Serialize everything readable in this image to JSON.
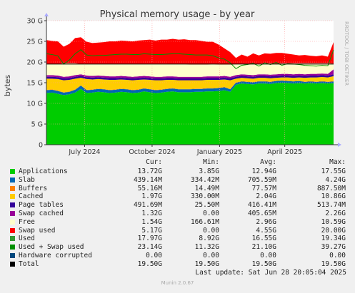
{
  "chart_data": {
    "type": "area",
    "title": "Physical memory usage - by year",
    "ylabel": "bytes",
    "watermark": "RRDTOOL / TOBI OETIKER",
    "ylim": [
      0,
      30
    ],
    "yticks": [
      0,
      5,
      10,
      15,
      20,
      25,
      30
    ],
    "ytick_labels": [
      "0",
      "5 G",
      "10 G",
      "15 G",
      "20 G",
      "25 G",
      "30 G"
    ],
    "x": [
      0,
      0.02,
      0.04,
      0.06,
      0.08,
      0.1,
      0.12,
      0.14,
      0.16,
      0.18,
      0.2,
      0.22,
      0.24,
      0.26,
      0.28,
      0.3,
      0.32,
      0.34,
      0.36,
      0.38,
      0.4,
      0.42,
      0.44,
      0.46,
      0.48,
      0.5,
      0.52,
      0.54,
      0.56,
      0.58,
      0.6,
      0.62,
      0.64,
      0.66,
      0.68,
      0.7,
      0.72,
      0.74,
      0.76,
      0.78,
      0.8,
      0.82,
      0.84,
      0.86,
      0.88,
      0.9,
      0.92,
      0.94,
      0.96,
      0.98,
      1.0
    ],
    "x_labels": [
      {
        "pos": 0.133,
        "label": "July 2024"
      },
      {
        "pos": 0.368,
        "label": "October 2024"
      },
      {
        "pos": 0.603,
        "label": "January 2025"
      },
      {
        "pos": 0.83,
        "label": "April 2025"
      }
    ],
    "series": [
      {
        "name": "Applications",
        "color": "#00cc00",
        "values": [
          12.5,
          12.6,
          12.3,
          12.0,
          12.2,
          12.6,
          13.5,
          12.5,
          12.6,
          12.8,
          12.7,
          12.5,
          12.6,
          12.8,
          12.7,
          12.5,
          12.6,
          12.9,
          12.7,
          12.5,
          12.6,
          12.8,
          12.9,
          12.7,
          12.7,
          12.7,
          12.8,
          12.8,
          12.9,
          12.9,
          13.0,
          13.2,
          12.8,
          14.5,
          14.8,
          14.7,
          14.6,
          14.8,
          14.8,
          14.7,
          14.9,
          15.0,
          14.9,
          14.8,
          14.9,
          14.8,
          14.9,
          14.8,
          14.9,
          14.8,
          14.9
        ]
      },
      {
        "name": "Slab",
        "color": "#0066b3",
        "values": [
          0.7,
          0.7,
          0.7,
          0.6,
          0.6,
          0.7,
          0.8,
          0.7,
          0.7,
          0.7,
          0.7,
          0.7,
          0.7,
          0.7,
          0.7,
          0.7,
          0.7,
          0.7,
          0.7,
          0.7,
          0.7,
          0.7,
          0.7,
          0.7,
          0.7,
          0.7,
          0.7,
          0.7,
          0.7,
          0.7,
          0.7,
          0.7,
          0.6,
          0.5,
          0.5,
          0.5,
          0.5,
          0.5,
          0.5,
          0.5,
          0.5,
          0.5,
          0.5,
          0.5,
          0.5,
          0.4,
          0.4,
          0.4,
          0.4,
          0.4,
          0.4
        ]
      },
      {
        "name": "Buffers",
        "color": "#ff8000",
        "values": [
          0.08,
          0.08,
          0.08,
          0.08,
          0.08,
          0.08,
          0.08,
          0.08,
          0.08,
          0.08,
          0.08,
          0.08,
          0.08,
          0.08,
          0.08,
          0.08,
          0.08,
          0.08,
          0.08,
          0.08,
          0.08,
          0.08,
          0.08,
          0.08,
          0.08,
          0.08,
          0.08,
          0.08,
          0.08,
          0.08,
          0.08,
          0.08,
          0.08,
          0.08,
          0.08,
          0.08,
          0.08,
          0.08,
          0.08,
          0.08,
          0.08,
          0.08,
          0.08,
          0.08,
          0.08,
          0.08,
          0.08,
          0.08,
          0.08,
          0.08,
          0.08
        ]
      },
      {
        "name": "Cached",
        "color": "#ffcc00",
        "values": [
          2.7,
          2.6,
          2.8,
          2.9,
          2.8,
          2.6,
          1.8,
          2.6,
          2.4,
          2.3,
          2.3,
          2.4,
          2.3,
          2.2,
          2.2,
          2.3,
          2.3,
          2.1,
          2.2,
          2.3,
          2.2,
          2.1,
          2.0,
          2.1,
          2.1,
          2.1,
          2.0,
          2.0,
          2.0,
          2.0,
          1.9,
          1.8,
          2.1,
          0.9,
          0.8,
          0.8,
          0.8,
          0.8,
          0.8,
          0.8,
          0.7,
          0.7,
          0.8,
          0.8,
          0.8,
          0.9,
          0.9,
          1.0,
          1.0,
          1.0,
          1.2
        ]
      },
      {
        "name": "Page tables",
        "color": "#330099",
        "values": [
          0.45,
          0.45,
          0.45,
          0.45,
          0.45,
          0.45,
          0.45,
          0.45,
          0.45,
          0.45,
          0.45,
          0.45,
          0.45,
          0.45,
          0.45,
          0.45,
          0.45,
          0.45,
          0.45,
          0.45,
          0.45,
          0.45,
          0.45,
          0.45,
          0.45,
          0.45,
          0.45,
          0.45,
          0.45,
          0.45,
          0.45,
          0.45,
          0.45,
          0.45,
          0.45,
          0.45,
          0.45,
          0.45,
          0.45,
          0.45,
          0.45,
          0.45,
          0.45,
          0.45,
          0.45,
          0.45,
          0.45,
          0.45,
          0.45,
          0.45,
          0.45
        ]
      },
      {
        "name": "Swap cached",
        "color": "#990099",
        "values": [
          0.4,
          0.4,
          0.4,
          0.4,
          0.4,
          0.4,
          0.4,
          0.4,
          0.4,
          0.4,
          0.4,
          0.4,
          0.4,
          0.4,
          0.4,
          0.4,
          0.4,
          0.4,
          0.4,
          0.4,
          0.4,
          0.4,
          0.4,
          0.4,
          0.4,
          0.4,
          0.4,
          0.4,
          0.4,
          0.4,
          0.4,
          0.4,
          0.4,
          0.4,
          0.4,
          0.4,
          0.4,
          0.4,
          0.4,
          0.4,
          0.4,
          0.4,
          0.4,
          0.4,
          0.4,
          0.4,
          0.4,
          0.4,
          0.4,
          0.4,
          1.2
        ]
      },
      {
        "name": "Free",
        "color": "#ffffcc",
        "values": [
          2.67,
          2.67,
          2.77,
          3.27,
          3.17,
          2.87,
          2.47,
          2.77,
          2.87,
          2.77,
          2.87,
          2.97,
          2.97,
          2.87,
          2.97,
          3.07,
          2.97,
          2.87,
          2.97,
          3.07,
          3.17,
          3.07,
          2.97,
          3.07,
          3.07,
          2.97,
          2.97,
          2.97,
          2.87,
          2.97,
          2.87,
          2.77,
          2.97,
          2.67,
          2.57,
          2.67,
          2.77,
          2.57,
          2.67,
          2.77,
          2.57,
          2.57,
          2.57,
          2.67,
          2.57,
          2.67,
          2.57,
          2.57,
          2.47,
          2.57,
          1.37
        ]
      },
      {
        "name": "Swap used",
        "color": "#ff0000",
        "values": [
          5.8,
          5.6,
          5.5,
          4.0,
          4.7,
          6.1,
          6.5,
          5.4,
          5.1,
          5.2,
          5.3,
          5.5,
          5.5,
          5.7,
          5.6,
          5.5,
          5.7,
          5.8,
          5.9,
          5.7,
          5.8,
          5.8,
          6.1,
          5.9,
          6.0,
          5.9,
          5.9,
          5.7,
          5.5,
          5.4,
          4.8,
          3.9,
          3.0,
          1.5,
          2.2,
          1.7,
          2.5,
          2.0,
          2.4,
          2.3,
          2.6,
          2.5,
          2.3,
          2.1,
          1.9,
          2.0,
          1.8,
          1.7,
          1.9,
          1.6,
          5.2
        ]
      }
    ],
    "lines": [
      {
        "name": "Used + Swap used",
        "color": "#008f00",
        "values": [
          22.0,
          21.8,
          21.5,
          19.5,
          20.5,
          22.0,
          23.0,
          21.7,
          21.5,
          21.6,
          21.6,
          21.7,
          21.8,
          21.9,
          21.9,
          21.8,
          21.8,
          22.0,
          21.9,
          21.8,
          21.8,
          21.9,
          22.0,
          22.0,
          21.9,
          21.8,
          21.7,
          21.7,
          21.7,
          21.5,
          21.0,
          20.7,
          19.8,
          18.4,
          19.2,
          19.4,
          19.7,
          19.0,
          19.8,
          19.4,
          19.9,
          19.2,
          19.6,
          19.5,
          19.4,
          19.2,
          19.1,
          19.0,
          19.2,
          19.1,
          22.9
        ]
      },
      {
        "name": "Total",
        "color": "#000000",
        "values": [
          19.5,
          19.5,
          19.5,
          19.5,
          19.5,
          19.5,
          19.5,
          19.5,
          19.5,
          19.5,
          19.5,
          19.5,
          19.5,
          19.5,
          19.5,
          19.5,
          19.5,
          19.5,
          19.5,
          19.5,
          19.5,
          19.5,
          19.5,
          19.5,
          19.5,
          19.5,
          19.5,
          19.5,
          19.5,
          19.5,
          19.5,
          19.5,
          19.5,
          19.5,
          19.5,
          19.5,
          19.5,
          19.5,
          19.5,
          19.5,
          19.5,
          19.5,
          19.5,
          19.5,
          19.5,
          19.5,
          19.5,
          19.5,
          19.5,
          19.5,
          19.5
        ]
      }
    ]
  },
  "legend": {
    "headers": {
      "cur": "Cur:",
      "min": "Min:",
      "avg": "Avg:",
      "max": "Max:"
    },
    "rows": [
      {
        "name": "Applications",
        "color": "#00cc00",
        "cur": "13.72G",
        "min": "3.85G",
        "avg": "12.94G",
        "max": "17.55G"
      },
      {
        "name": "Slab",
        "color": "#0066b3",
        "cur": "439.14M",
        "min": "334.42M",
        "avg": "705.59M",
        "max": "4.24G"
      },
      {
        "name": "Buffers",
        "color": "#ff8000",
        "cur": "55.16M",
        "min": "14.49M",
        "avg": "77.57M",
        "max": "887.50M"
      },
      {
        "name": "Cached",
        "color": "#ffcc00",
        "cur": "1.97G",
        "min": "330.00M",
        "avg": "2.04G",
        "max": "10.86G"
      },
      {
        "name": "Page tables",
        "color": "#330099",
        "cur": "491.69M",
        "min": "25.50M",
        "avg": "416.41M",
        "max": "513.74M"
      },
      {
        "name": "Swap cached",
        "color": "#990099",
        "cur": "1.32G",
        "min": "0.00",
        "avg": "405.65M",
        "max": "2.26G"
      },
      {
        "name": "Free",
        "color": "#ffffcc",
        "cur": "1.54G",
        "min": "166.61M",
        "avg": "2.96G",
        "max": "10.59G"
      },
      {
        "name": "Swap used",
        "color": "#ff0000",
        "cur": "5.17G",
        "min": "0.00",
        "avg": "4.55G",
        "max": "20.00G"
      },
      {
        "name": "Used",
        "color": "#339933",
        "cur": "17.97G",
        "min": "8.92G",
        "avg": "16.55G",
        "max": "19.34G"
      },
      {
        "name": "Used + Swap used",
        "color": "#008f00",
        "cur": "23.14G",
        "min": "11.32G",
        "avg": "21.10G",
        "max": "39.27G"
      },
      {
        "name": "Hardware corrupted",
        "color": "#00487d",
        "cur": "0.00",
        "min": "0.00",
        "avg": "0.00",
        "max": "0.00"
      },
      {
        "name": "Total",
        "color": "#000000",
        "cur": "19.50G",
        "min": "19.50G",
        "avg": "19.50G",
        "max": "19.50G"
      }
    ]
  },
  "footer": {
    "last_update": "Last update: Sat Jun 28 20:05:04 2025",
    "generator": "Munin 2.0.67"
  }
}
